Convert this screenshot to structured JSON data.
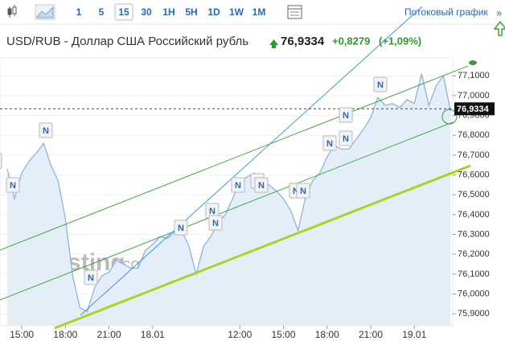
{
  "toolbar": {
    "buttons": [
      "1",
      "5",
      "15",
      "30",
      "1H",
      "5H",
      "1D",
      "1W",
      "1M"
    ],
    "selected": "15",
    "stream_link": "Потоковый график",
    "stream_arrow": "»"
  },
  "header": {
    "title": "USD/RUB - Доллар США Российский рубль",
    "change": "+0,8279",
    "change_pct": "(+1,09%)"
  },
  "chart_data": {
    "type": "area",
    "categories": [
      null,
      null,
      "15:00",
      null,
      null,
      null,
      null,
      null,
      "18:00",
      null,
      null,
      null,
      null,
      null,
      "21:00",
      null,
      null,
      null,
      null,
      null,
      "18.01",
      null,
      null,
      null,
      null,
      null,
      null,
      null,
      null,
      null,
      null,
      null,
      "12:00",
      null,
      null,
      null,
      null,
      null,
      "15:00",
      null,
      null,
      null,
      null,
      null,
      "18:00",
      null,
      null,
      null,
      null,
      null,
      "21:00",
      null,
      null,
      null,
      null,
      null,
      "19.01",
      null,
      null,
      null,
      null,
      null
    ],
    "values": [
      76.63,
      76.48,
      76.61,
      76.67,
      76.71,
      76.76,
      76.65,
      76.57,
      76.38,
      76.09,
      75.93,
      75.91,
      76.03,
      76.09,
      76.11,
      76.17,
      76.15,
      76.13,
      76.13,
      76.22,
      76.25,
      76.29,
      76.28,
      76.31,
      76.32,
      76.24,
      76.1,
      76.24,
      76.29,
      76.36,
      76.4,
      76.48,
      76.57,
      76.59,
      76.61,
      76.57,
      76.55,
      76.52,
      76.48,
      76.42,
      76.32,
      76.48,
      76.57,
      76.61,
      76.69,
      76.75,
      76.73,
      76.73,
      76.78,
      76.83,
      76.89,
      76.99,
      76.95,
      76.96,
      76.94,
      76.98,
      76.96,
      77.11,
      76.95,
      77.05,
      77.1,
      76.92
    ],
    "color": "#8eb4dc",
    "ylim": [
      75.84,
      77.19
    ],
    "yticks": [
      {
        "value": 77.1,
        "label": "77,1000"
      },
      {
        "value": 77.0,
        "label": "77,0000"
      },
      {
        "value": 76.9,
        "label": "76,9000"
      },
      {
        "value": 76.8,
        "label": "76,8000"
      },
      {
        "value": 76.7,
        "label": "76,7000"
      },
      {
        "value": 76.6,
        "label": "76,6000"
      },
      {
        "value": 76.5,
        "label": "76,5000"
      },
      {
        "value": 76.4,
        "label": "76,4000"
      },
      {
        "value": 76.3,
        "label": "76,3000"
      },
      {
        "value": 76.2,
        "label": "76,2000"
      },
      {
        "value": 76.1,
        "label": "76,1000"
      },
      {
        "value": 76.0,
        "label": "76,0000"
      },
      {
        "value": 75.9,
        "label": "75,9000"
      }
    ],
    "last_price": {
      "value": 76.9334,
      "label": "76,9334"
    },
    "news_markers": [
      "N",
      "N",
      "N",
      "N",
      "N",
      "N",
      "N",
      "N",
      "N",
      "N",
      "N",
      "N",
      "N",
      "N",
      "N",
      "N"
    ],
    "watermark": [
      "Investing",
      ".com"
    ]
  }
}
